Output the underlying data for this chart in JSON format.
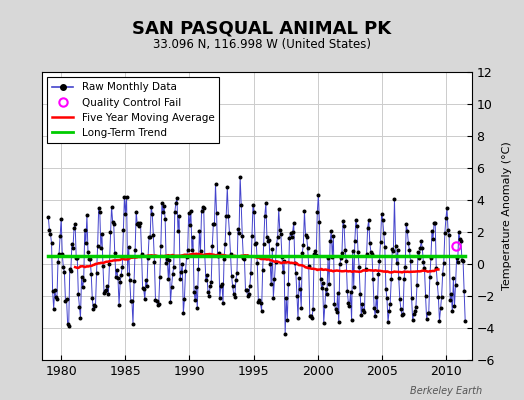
{
  "title": "SAN PASQUAL ANIMAL PK",
  "subtitle": "33.096 N, 116.998 W (United States)",
  "ylabel": "Temperature Anomaly (°C)",
  "watermark": "Berkeley Earth",
  "xlim": [
    1978.5,
    2012.0
  ],
  "ylim": [
    -6,
    12
  ],
  "yticks": [
    -6,
    -4,
    -2,
    0,
    2,
    4,
    6,
    8,
    10,
    12
  ],
  "xticks": [
    1980,
    1985,
    1990,
    1995,
    2000,
    2005,
    2010
  ],
  "qc_fail_x": 2010.75,
  "qc_fail_y": 1.1,
  "figure_bg_color": "#d8d8d8",
  "plot_bg_color": "#ffffff",
  "raw_line_color": "#4444cc",
  "raw_marker_color": "#000000",
  "moving_avg_color": "#ff0000",
  "trend_color": "#00cc00",
  "qc_color": "#ff00ff",
  "grid_color": "#cccccc",
  "raw_seed": 42,
  "trend_intercept": 0.5,
  "trend_slope": 0.0,
  "moving_avg_base": 0.3,
  "moving_avg_amplitude": 0.5
}
